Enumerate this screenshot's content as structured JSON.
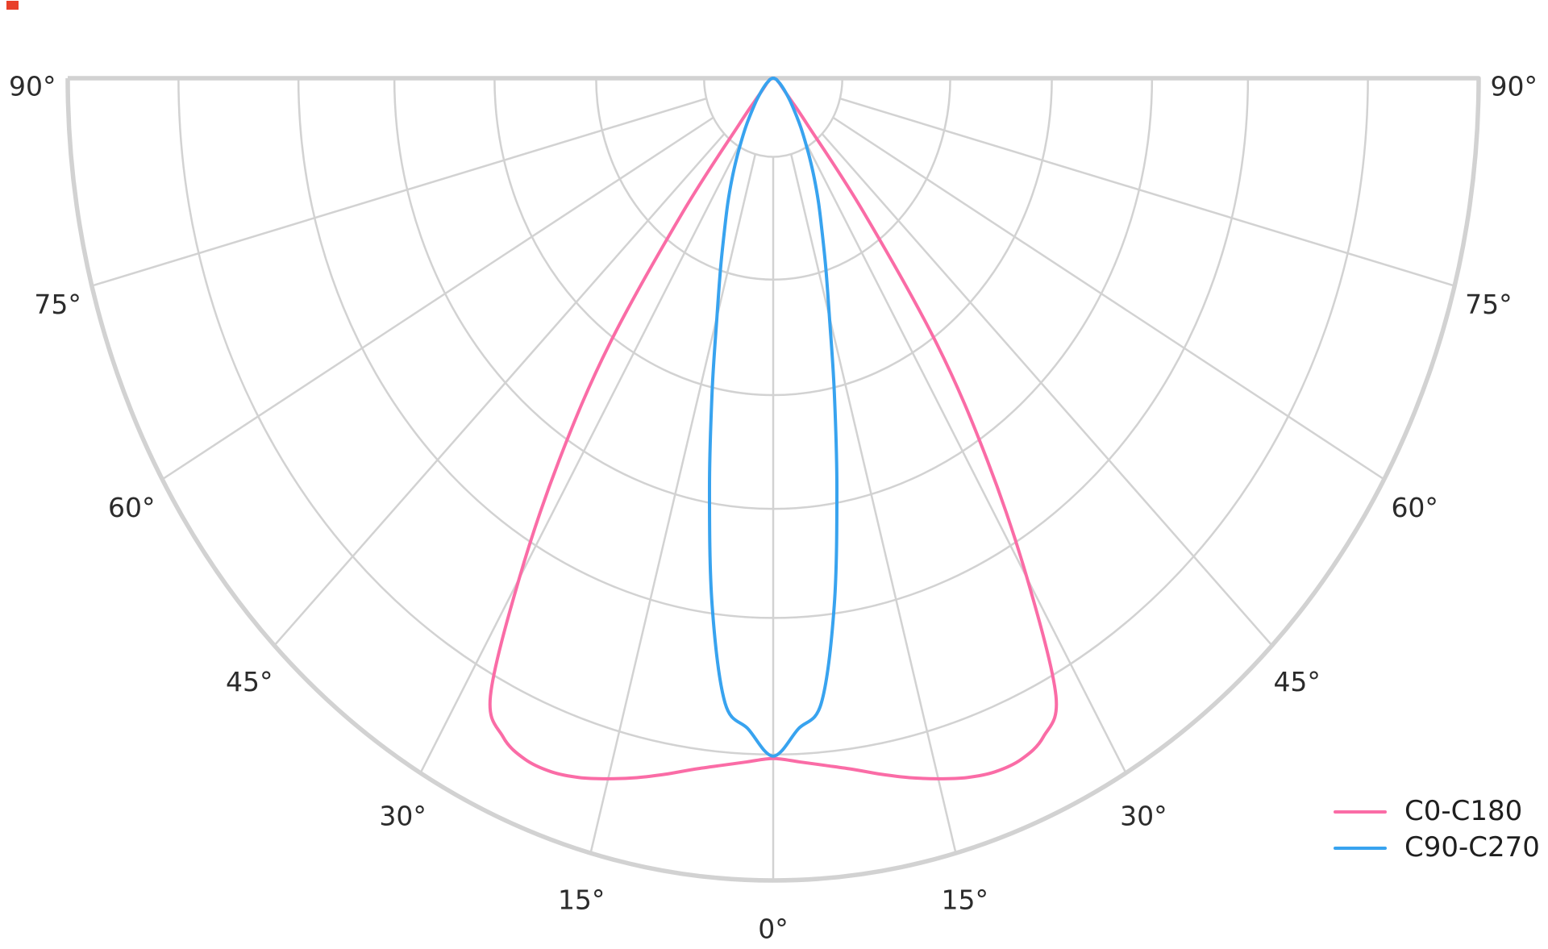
{
  "chart_data": {
    "type": "line",
    "polar": true,
    "description": "Luminaire polar intensity distribution; 0 deg = nadir at bottom center, 90 deg = horizontal at top edges; radial values are relative intensity (no radial tick labels shown)",
    "title": "",
    "angle_ticks_deg": [
      0,
      15,
      30,
      45,
      60,
      75,
      90
    ],
    "angle_tick_label_suffix": "°",
    "angle_range_deg": [
      -90,
      90
    ],
    "ring_fractions": [
      0.098,
      0.251,
      0.395,
      0.537,
      0.673,
      0.843,
      1.0
    ],
    "inner_hole_fraction": 0.098,
    "radial_labels_visible": false,
    "grid_on": true,
    "grid_color": "#d2d2d2",
    "boundary_color": "#d2d2d2",
    "tick_label_color": "#2b2b2b",
    "legend_position": "bottom-right",
    "series": [
      {
        "name": "C0-C180",
        "color": "#fa6ca6",
        "symmetric": true,
        "points": [
          [
            0,
            0.848
          ],
          [
            2.5,
            0.853
          ],
          [
            5,
            0.86
          ],
          [
            7.5,
            0.869
          ],
          [
            10,
            0.881
          ],
          [
            12.5,
            0.893
          ],
          [
            15,
            0.904
          ],
          [
            17.5,
            0.914
          ],
          [
            20,
            0.92
          ],
          [
            22.5,
            0.919
          ],
          [
            25,
            0.906
          ],
          [
            27.5,
            0.868
          ],
          [
            30,
            0.72
          ],
          [
            32.5,
            0.565
          ],
          [
            35,
            0.405
          ],
          [
            37.5,
            0.21
          ],
          [
            40,
            0.075
          ],
          [
            42.5,
            0.038
          ],
          [
            45,
            0.024
          ],
          [
            50,
            0.015
          ],
          [
            55,
            0.011
          ],
          [
            60,
            0.008
          ],
          [
            70,
            0.005
          ],
          [
            80,
            0.002
          ],
          [
            90,
            0
          ]
        ]
      },
      {
        "name": "C90-C270",
        "color": "#38a3ef",
        "symmetric": true,
        "points": [
          [
            0,
            0.845
          ],
          [
            2.5,
            0.812
          ],
          [
            5,
            0.782
          ],
          [
            7.5,
            0.663
          ],
          [
            10,
            0.52
          ],
          [
            12.5,
            0.4
          ],
          [
            15,
            0.308
          ],
          [
            17.5,
            0.248
          ],
          [
            20,
            0.202
          ],
          [
            22.5,
            0.168
          ],
          [
            25,
            0.138
          ],
          [
            27.5,
            0.112
          ],
          [
            30,
            0.09
          ],
          [
            32.5,
            0.073
          ],
          [
            35,
            0.058
          ],
          [
            40,
            0.038
          ],
          [
            45,
            0.025
          ],
          [
            50,
            0.017
          ],
          [
            55,
            0.012
          ],
          [
            60,
            0.008
          ],
          [
            70,
            0.005
          ],
          [
            80,
            0.002
          ],
          [
            90,
            0
          ]
        ]
      }
    ]
  },
  "legend": {
    "items": [
      {
        "label": "C0-C180",
        "color": "#fa6ca6"
      },
      {
        "label": "C90-C270",
        "color": "#38a3ef"
      }
    ]
  }
}
